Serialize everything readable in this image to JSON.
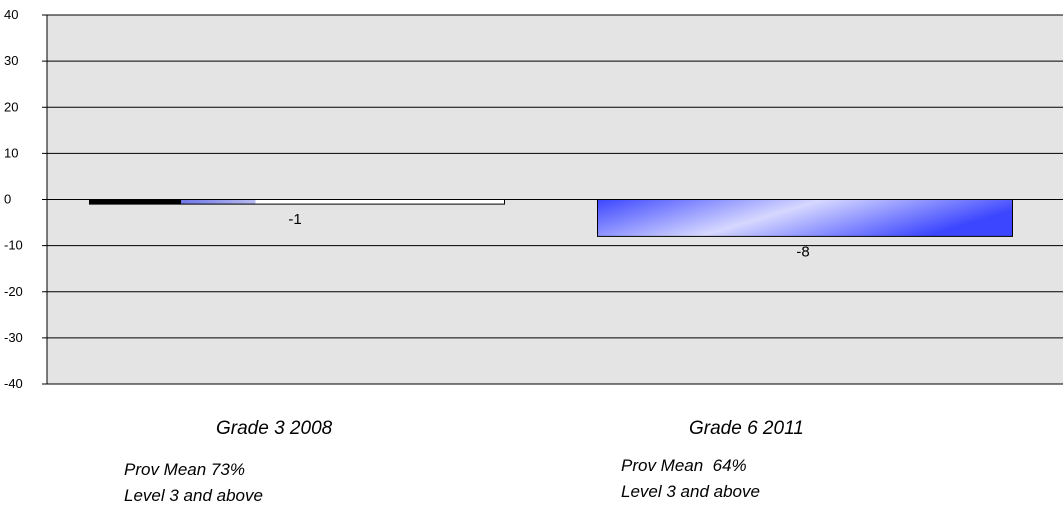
{
  "chart_data": {
    "type": "bar",
    "categories": [
      "Grade 3 2008",
      "Grade 6 2011"
    ],
    "values": [
      -1,
      -8
    ],
    "data_labels": [
      "-1",
      "-8"
    ],
    "ylim": [
      -40,
      40
    ],
    "yticks": [
      40,
      30,
      20,
      10,
      0,
      -10,
      -20,
      -30,
      -40
    ],
    "grid": true,
    "plot_background": "#e4e4e4",
    "bar_colors": [
      "#3c46ff",
      "#d6d8ff"
    ]
  },
  "notes": [
    {
      "line1": "Prov Mean 73%",
      "line2": "Level 3 and above"
    },
    {
      "line1": "Prov Mean  64%",
      "line2": "Level 3 and above"
    }
  ]
}
